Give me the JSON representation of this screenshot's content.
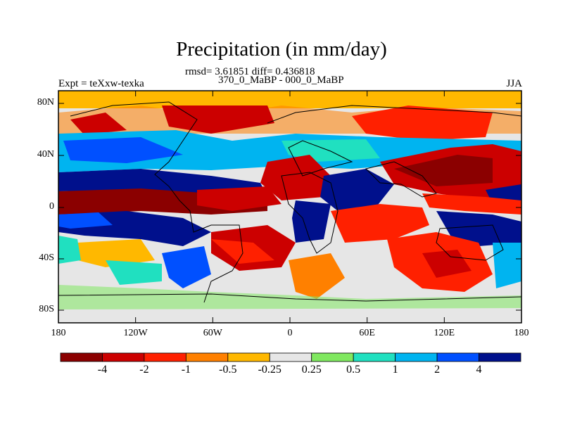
{
  "title": "Precipitation (in mm/day)",
  "stats_line": "rmsd= 3.61851 diff= 0.436818",
  "comparison": "370_0_MaBP - 000_0_MaBP",
  "experiment": "Expt = teXxw-texka",
  "season": "JJA",
  "lat_labels": [
    "80N",
    "40N",
    "0",
    "40S",
    "80S"
  ],
  "lon_labels": [
    "180",
    "120W",
    "60W",
    "0",
    "60E",
    "120E",
    "180"
  ],
  "colorbar": {
    "labels": [
      "-4",
      "-2",
      "-1",
      "-0.5",
      "-0.25",
      "0.25",
      "0.5",
      "1",
      "2",
      "4"
    ],
    "colors": [
      "#8b0000",
      "#cc0000",
      "#ff2000",
      "#ff8000",
      "#ffb800",
      "#e6e6e6",
      "#80e860",
      "#20e0c0",
      "#00b4f0",
      "#0050ff",
      "#00108c"
    ]
  }
}
